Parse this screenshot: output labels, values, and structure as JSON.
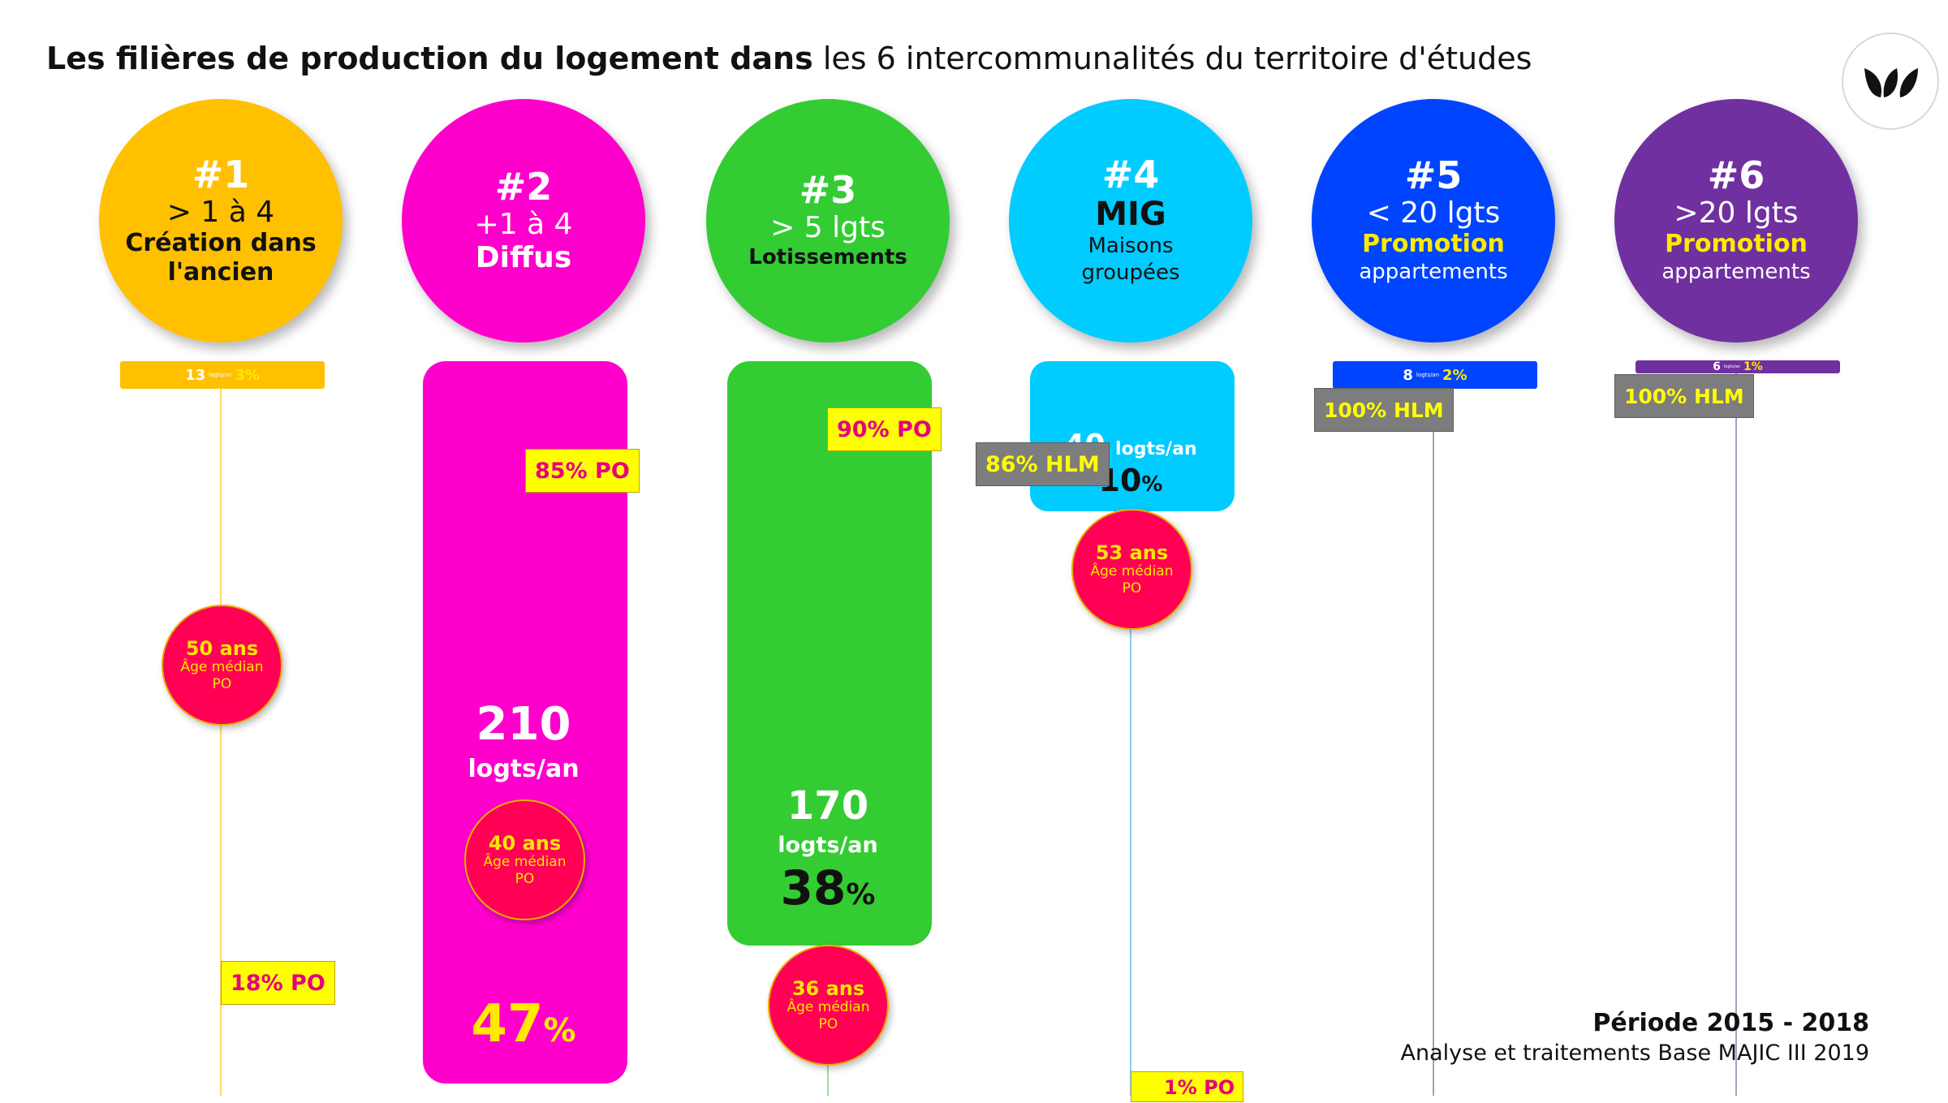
{
  "title": {
    "bold": "Les filières de production du logement dans",
    "rest": "les 6 intercommunalités du territoire d'études"
  },
  "footer": {
    "period": "Période 2015 - 2018",
    "source": "Analyse et traitements Base MAJIC III 2019"
  },
  "colors": {
    "f1": "#ffc000",
    "f2": "#ff00cc",
    "f3": "#33cc33",
    "f4": "#00ccff",
    "f5": "#0044ff",
    "f6": "#7030a0",
    "age_circle": "#ff0055",
    "po_tag": "#ffff00",
    "hlm_tag": "#7d7d7d"
  },
  "icons": {
    "logo": "three-leaf-logo-icon"
  },
  "age_label": "Âge médian",
  "age_suffix": "PO",
  "chart_data": {
    "type": "bar",
    "unit": "logts/an",
    "categories": [
      "#1",
      "#2",
      "#3",
      "#4",
      "#5",
      "#6"
    ],
    "filieres": [
      {
        "num": "#1",
        "line1": "> 1 à 4",
        "line2": "Création dans",
        "line3": "l'ancien",
        "logts": 13,
        "logts_unit": "logts/an",
        "share_pct": "3",
        "tenure": "18% PO",
        "age": "50 ans"
      },
      {
        "num": "#2",
        "line1": "+1 à 4",
        "line2": "Diffus",
        "line3": "",
        "logts": 210,
        "logts_unit": "logts/an",
        "share_pct": "47",
        "tenure": "85% PO",
        "age": "40 ans"
      },
      {
        "num": "#3",
        "line1": "> 5 lgts",
        "line2": "Lotissements",
        "line3": "",
        "logts": 170,
        "logts_unit": "logts/an",
        "share_pct": "38",
        "tenure": "90% PO",
        "age": "36 ans"
      },
      {
        "num": "#4",
        "line1": "MIG",
        "line2": "Maisons",
        "line3": "groupées",
        "logts": 40,
        "logts_unit": "logts/an",
        "share_pct": "10",
        "tenure": "86% HLM",
        "tenure2": "1% PO",
        "age": "53 ans"
      },
      {
        "num": "#5",
        "line1": "< 20 lgts",
        "line2": "Promotion",
        "line3": "appartements",
        "logts": 8,
        "logts_unit": "logts/an",
        "share_pct": "2",
        "tenure": "100% HLM",
        "age": ""
      },
      {
        "num": "#6",
        "line1": ">20 lgts",
        "line2": "Promotion",
        "line3": "appartements",
        "logts": 6,
        "logts_unit": "logts/an",
        "share_pct": "1",
        "tenure": "100% HLM",
        "age": ""
      }
    ]
  }
}
